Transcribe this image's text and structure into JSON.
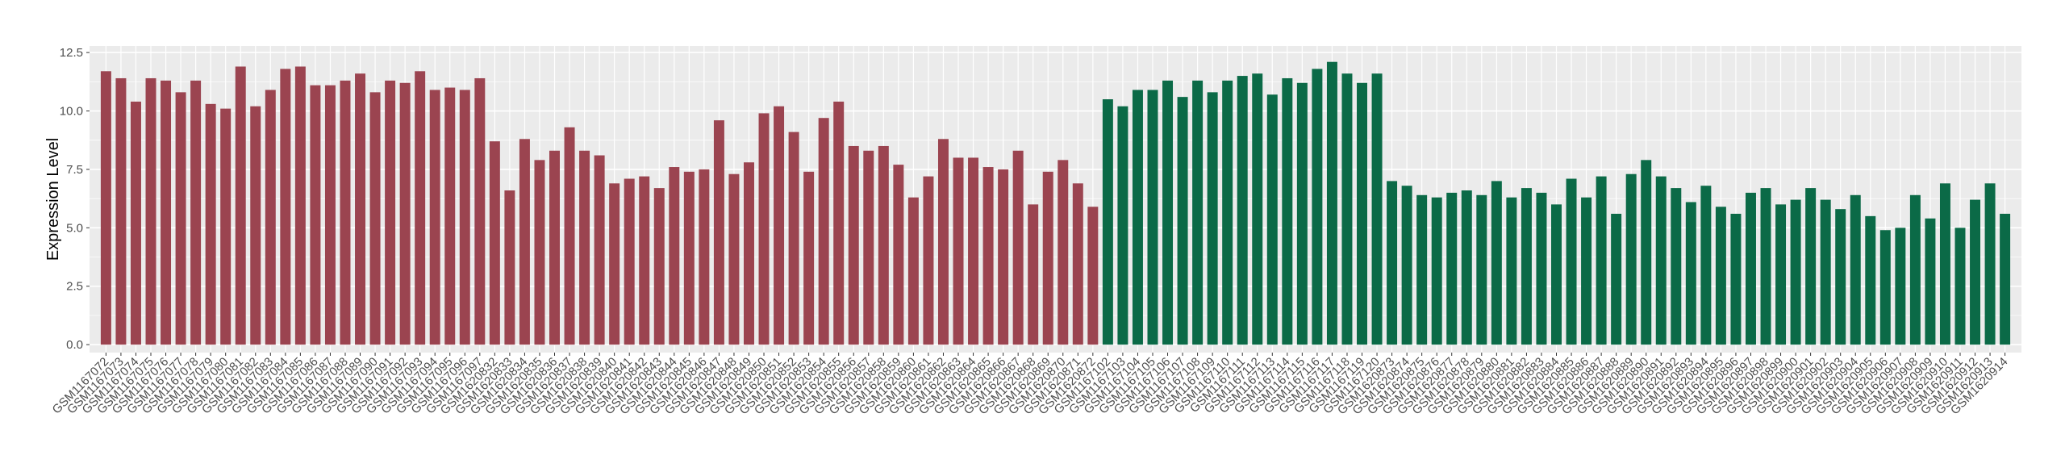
{
  "chart_data": {
    "type": "bar",
    "y_label": "Expression Level",
    "categories": [
      "GSM1167072",
      "GSM1167073",
      "GSM1167074",
      "GSM1167075",
      "GSM1167076",
      "GSM1167077",
      "GSM1167078",
      "GSM1167079",
      "GSM1167080",
      "GSM1167081",
      "GSM1167082",
      "GSM1167083",
      "GSM1167084",
      "GSM1167085",
      "GSM1167086",
      "GSM1167087",
      "GSM1167088",
      "GSM1167089",
      "GSM1167090",
      "GSM1167091",
      "GSM1167092",
      "GSM1167093",
      "GSM1167094",
      "GSM1167095",
      "GSM1167096",
      "GSM1167097",
      "GSM1620832",
      "GSM1620833",
      "GSM1620834",
      "GSM1620835",
      "GSM1620836",
      "GSM1620837",
      "GSM1620838",
      "GSM1620839",
      "GSM1620840",
      "GSM1620841",
      "GSM1620842",
      "GSM1620843",
      "GSM1620844",
      "GSM1620845",
      "GSM1620846",
      "GSM1620847",
      "GSM1620848",
      "GSM1620849",
      "GSM1620850",
      "GSM1620851",
      "GSM1620852",
      "GSM1620853",
      "GSM1620854",
      "GSM1620855",
      "GSM1620856",
      "GSM1620857",
      "GSM1620858",
      "GSM1620859",
      "GSM1620860",
      "GSM1620861",
      "GSM1620862",
      "GSM1620863",
      "GSM1620864",
      "GSM1620865",
      "GSM1620866",
      "GSM1620867",
      "GSM1620868",
      "GSM1620869",
      "GSM1620870",
      "GSM1620871",
      "GSM1620872",
      "GSM1167102",
      "GSM1167103",
      "GSM1167104",
      "GSM1167105",
      "GSM1167106",
      "GSM1167107",
      "GSM1167108",
      "GSM1167109",
      "GSM1167110",
      "GSM1167111",
      "GSM1167112",
      "GSM1167113",
      "GSM1167114",
      "GSM1167115",
      "GSM1167116",
      "GSM1167117",
      "GSM1167118",
      "GSM1167119",
      "GSM1167120",
      "GSM1620873",
      "GSM1620874",
      "GSM1620875",
      "GSM1620876",
      "GSM1620877",
      "GSM1620878",
      "GSM1620879",
      "GSM1620880",
      "GSM1620881",
      "GSM1620882",
      "GSM1620883",
      "GSM1620884",
      "GSM1620885",
      "GSM1620886",
      "GSM1620887",
      "GSM1620888",
      "GSM1620889",
      "GSM1620890",
      "GSM1620891",
      "GSM1620892",
      "GSM1620893",
      "GSM1620894",
      "GSM1620895",
      "GSM1620896",
      "GSM1620897",
      "GSM1620898",
      "GSM1620899",
      "GSM1620900",
      "GSM1620901",
      "GSM1620902",
      "GSM1620903",
      "GSM1620904",
      "GSM1620905",
      "GSM1620906",
      "GSM1620907",
      "GSM1620908",
      "GSM1620909",
      "GSM1620910",
      "GSM1620911",
      "GSM1620912",
      "GSM1620913",
      "GSM1620914"
    ],
    "values": [
      11.7,
      11.4,
      10.4,
      11.4,
      11.3,
      10.8,
      11.3,
      10.3,
      10.1,
      11.9,
      10.2,
      10.9,
      11.8,
      11.9,
      11.1,
      11.1,
      11.3,
      11.6,
      10.8,
      11.3,
      11.2,
      11.7,
      10.9,
      11.0,
      10.9,
      11.4,
      8.7,
      6.6,
      8.8,
      7.9,
      8.3,
      9.3,
      8.3,
      8.1,
      6.9,
      7.1,
      7.2,
      6.7,
      7.6,
      7.4,
      7.5,
      9.6,
      7.3,
      7.8,
      9.9,
      10.2,
      9.1,
      7.4,
      9.7,
      10.4,
      8.5,
      8.3,
      8.5,
      7.7,
      6.3,
      7.2,
      8.8,
      8.0,
      8.0,
      7.6,
      7.5,
      8.3,
      6.0,
      7.4,
      7.9,
      6.9,
      5.9,
      10.5,
      10.2,
      10.9,
      10.9,
      11.3,
      10.6,
      11.3,
      10.8,
      11.3,
      11.5,
      11.6,
      10.7,
      11.4,
      11.2,
      11.8,
      12.1,
      11.6,
      11.2,
      11.6,
      7.0,
      6.8,
      6.4,
      6.3,
      6.5,
      6.6,
      6.4,
      7.0,
      6.3,
      6.7,
      6.5,
      6.0,
      7.1,
      6.3,
      7.2,
      5.6,
      7.3,
      7.9,
      7.2,
      6.7,
      6.1,
      6.8,
      5.9,
      5.6,
      6.5,
      6.7,
      6.0,
      6.2,
      6.7,
      6.2,
      5.8,
      6.4,
      5.5,
      4.9,
      5.0,
      6.4,
      5.4,
      6.9,
      5.0,
      6.2,
      6.9,
      5.6
    ],
    "colors": [
      "#9b4450",
      "#9b4450",
      "#9b4450",
      "#9b4450",
      "#9b4450",
      "#9b4450",
      "#9b4450",
      "#9b4450",
      "#9b4450",
      "#9b4450",
      "#9b4450",
      "#9b4450",
      "#9b4450",
      "#9b4450",
      "#9b4450",
      "#9b4450",
      "#9b4450",
      "#9b4450",
      "#9b4450",
      "#9b4450",
      "#9b4450",
      "#9b4450",
      "#9b4450",
      "#9b4450",
      "#9b4450",
      "#9b4450",
      "#9b4450",
      "#9b4450",
      "#9b4450",
      "#9b4450",
      "#9b4450",
      "#9b4450",
      "#9b4450",
      "#9b4450",
      "#9b4450",
      "#9b4450",
      "#9b4450",
      "#9b4450",
      "#9b4450",
      "#9b4450",
      "#9b4450",
      "#9b4450",
      "#9b4450",
      "#9b4450",
      "#9b4450",
      "#9b4450",
      "#9b4450",
      "#9b4450",
      "#9b4450",
      "#9b4450",
      "#9b4450",
      "#9b4450",
      "#9b4450",
      "#9b4450",
      "#9b4450",
      "#9b4450",
      "#9b4450",
      "#9b4450",
      "#9b4450",
      "#9b4450",
      "#9b4450",
      "#9b4450",
      "#9b4450",
      "#9b4450",
      "#9b4450",
      "#9b4450",
      "#9b4450",
      "#0b6a47",
      "#0b6a47",
      "#0b6a47",
      "#0b6a47",
      "#0b6a47",
      "#0b6a47",
      "#0b6a47",
      "#0b6a47",
      "#0b6a47",
      "#0b6a47",
      "#0b6a47",
      "#0b6a47",
      "#0b6a47",
      "#0b6a47",
      "#0b6a47",
      "#0b6a47",
      "#0b6a47",
      "#0b6a47",
      "#0b6a47",
      "#0b6a47",
      "#0b6a47",
      "#0b6a47",
      "#0b6a47",
      "#0b6a47",
      "#0b6a47",
      "#0b6a47",
      "#0b6a47",
      "#0b6a47",
      "#0b6a47",
      "#0b6a47",
      "#0b6a47",
      "#0b6a47",
      "#0b6a47",
      "#0b6a47",
      "#0b6a47",
      "#0b6a47",
      "#0b6a47",
      "#0b6a47",
      "#0b6a47",
      "#0b6a47",
      "#0b6a47",
      "#0b6a47",
      "#0b6a47",
      "#0b6a47",
      "#0b6a47",
      "#0b6a47",
      "#0b6a47",
      "#0b6a47",
      "#0b6a47",
      "#0b6a47",
      "#0b6a47",
      "#0b6a47",
      "#0b6a47",
      "#0b6a47",
      "#0b6a47",
      "#0b6a47",
      "#0b6a47",
      "#0b6a47",
      "#0b6a47",
      "#0b6a47",
      "#0b6a47"
    ],
    "ylim": [
      -0.34,
      12.78
    ],
    "yticks": [
      {
        "value": 0,
        "label": "0.0"
      },
      {
        "value": 2.5,
        "label": "2.5"
      },
      {
        "value": 5,
        "label": "5.0"
      },
      {
        "value": 7.5,
        "label": "7.5"
      },
      {
        "value": 10,
        "label": "10.0"
      },
      {
        "value": 12.5,
        "label": "12.5"
      }
    ],
    "grid": true
  }
}
